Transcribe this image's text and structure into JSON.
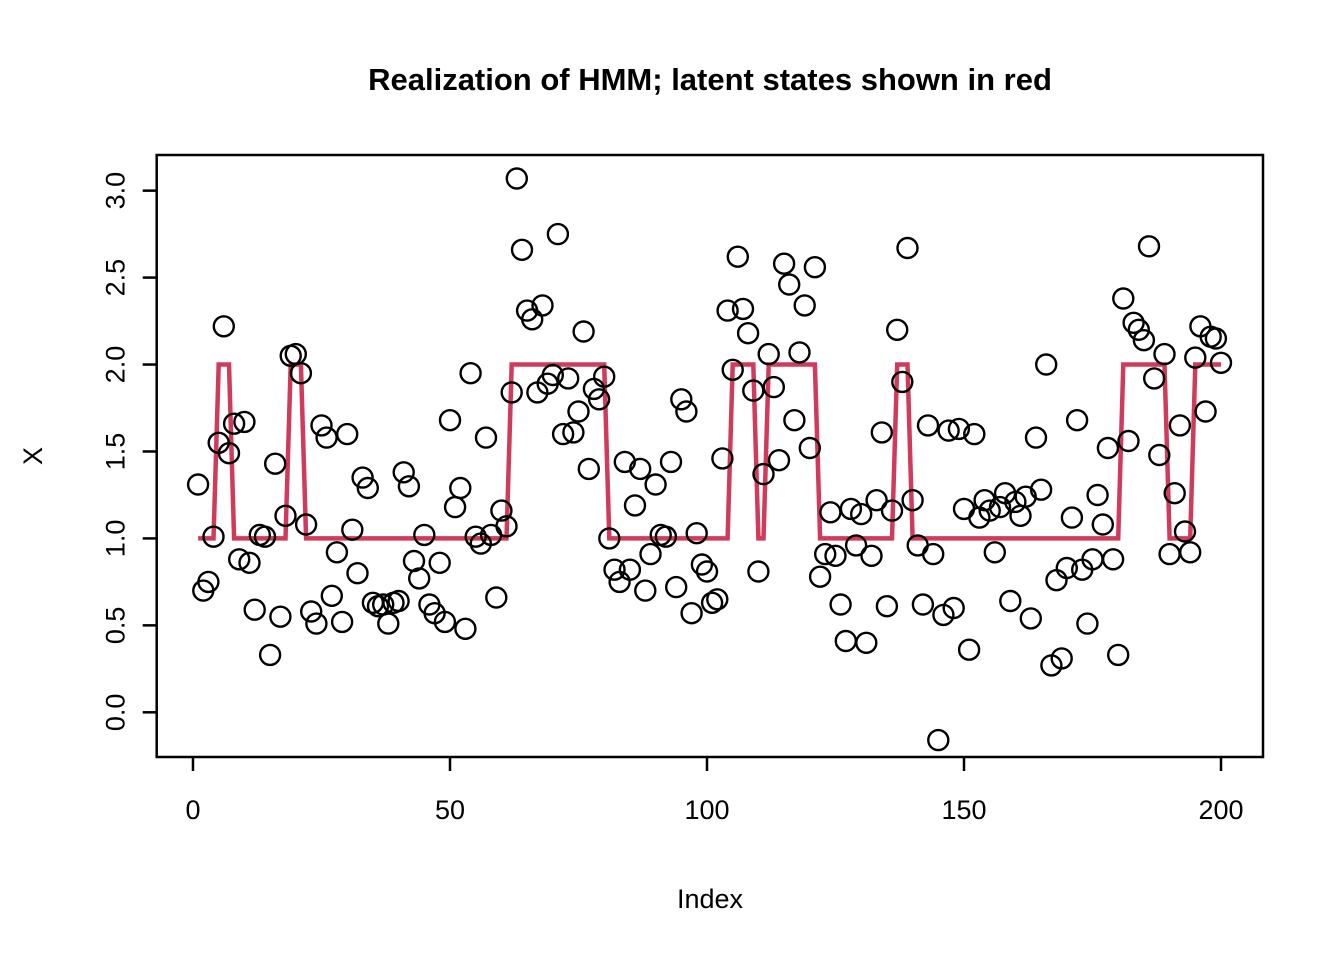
{
  "title": "Realization of HMM; latent states shown in red",
  "x_axis": {
    "label": "Index",
    "tick_labels": [
      "0",
      "50",
      "100",
      "150",
      "200"
    ],
    "tick_values": [
      0,
      50,
      100,
      150,
      200
    ],
    "range": [
      -7.06,
      208.17
    ]
  },
  "y_axis": {
    "label": "X",
    "tick_labels": [
      "0.0",
      "0.5",
      "1.0",
      "1.5",
      "2.0",
      "2.5",
      "3.0"
    ],
    "tick_values": [
      0.0,
      0.5,
      1.0,
      1.5,
      2.0,
      2.5,
      3.0
    ],
    "range": [
      -0.257,
      3.205
    ]
  },
  "colors": {
    "points": "#000000",
    "latent_line": "#d13b5b",
    "axis": "#000000",
    "background": "#ffffff"
  },
  "chart_data": {
    "type": "scatter",
    "title": "Realization of HMM; latent states shown in red",
    "xlabel": "Index",
    "ylabel": "X",
    "xlim": [
      -7.06,
      208.17
    ],
    "ylim": [
      -0.257,
      3.205
    ],
    "grid": false,
    "legend": "none",
    "x_range": [
      1,
      200
    ],
    "y": [
      1.31,
      0.7,
      0.75,
      1.01,
      1.55,
      2.22,
      1.49,
      1.66,
      0.88,
      1.67,
      0.86,
      0.59,
      1.02,
      1.01,
      0.33,
      1.43,
      0.55,
      1.13,
      2.05,
      2.06,
      1.95,
      1.08,
      0.58,
      0.51,
      1.65,
      1.58,
      0.67,
      0.92,
      0.52,
      1.6,
      1.05,
      0.8,
      1.35,
      1.29,
      0.63,
      0.61,
      0.62,
      0.51,
      0.63,
      0.64,
      1.38,
      1.3,
      0.87,
      0.77,
      1.02,
      0.62,
      0.57,
      0.86,
      0.52,
      1.68,
      1.18,
      1.29,
      0.48,
      1.95,
      1.01,
      0.97,
      1.58,
      1.02,
      0.66,
      1.16,
      1.07,
      1.84,
      3.07,
      2.66,
      2.31,
      2.26,
      1.84,
      2.34,
      1.89,
      1.94,
      2.75,
      1.6,
      1.92,
      1.61,
      1.73,
      2.19,
      1.4,
      1.86,
      1.8,
      1.93,
      1.0,
      0.82,
      0.75,
      1.44,
      0.82,
      1.19,
      1.4,
      0.7,
      0.91,
      1.31,
      1.02,
      1.01,
      1.44,
      0.72,
      1.8,
      1.73,
      0.57,
      1.03,
      0.85,
      0.81,
      0.63,
      0.65,
      1.46,
      2.31,
      1.97,
      2.62,
      2.32,
      2.18,
      1.85,
      0.81,
      1.37,
      2.06,
      1.87,
      1.45,
      2.58,
      2.46,
      1.68,
      2.07,
      2.34,
      1.52,
      2.56,
      0.78,
      0.91,
      1.15,
      0.9,
      0.62,
      0.41,
      1.17,
      0.96,
      1.14,
      0.4,
      0.9,
      1.22,
      1.61,
      0.61,
      1.16,
      2.2,
      1.9,
      2.67,
      1.22,
      0.96,
      0.62,
      1.65,
      0.91,
      -0.16,
      0.56,
      1.62,
      0.6,
      1.63,
      1.17,
      0.36,
      1.6,
      1.12,
      1.22,
      1.16,
      0.92,
      1.18,
      1.26,
      0.64,
      1.21,
      1.13,
      1.24,
      0.54,
      1.58,
      1.28,
      2.0,
      0.27,
      0.76,
      0.31,
      0.83,
      1.12,
      1.68,
      0.82,
      0.51,
      0.88,
      1.25,
      1.08,
      1.52,
      0.88,
      0.33,
      2.38,
      1.56,
      2.24,
      2.2,
      2.14,
      2.68,
      1.92,
      1.48,
      2.06,
      0.91,
      1.26,
      1.65,
      1.04,
      0.92,
      2.04,
      2.22,
      1.73,
      2.16,
      2.15,
      2.01
    ],
    "latent_state_runs": [
      [
        1,
        4,
        1
      ],
      [
        5,
        7,
        2
      ],
      [
        8,
        18,
        1
      ],
      [
        19,
        21,
        2
      ],
      [
        22,
        61,
        1
      ],
      [
        62,
        80,
        2
      ],
      [
        81,
        104,
        1
      ],
      [
        105,
        109,
        2
      ],
      [
        110,
        111,
        1
      ],
      [
        112,
        121,
        2
      ],
      [
        122,
        136,
        1
      ],
      [
        137,
        139,
        2
      ],
      [
        140,
        180,
        1
      ],
      [
        181,
        189,
        2
      ],
      [
        190,
        194,
        1
      ],
      [
        195,
        200,
        2
      ]
    ],
    "latent_line_color": "#d13b5b",
    "point_color": "#000000"
  }
}
